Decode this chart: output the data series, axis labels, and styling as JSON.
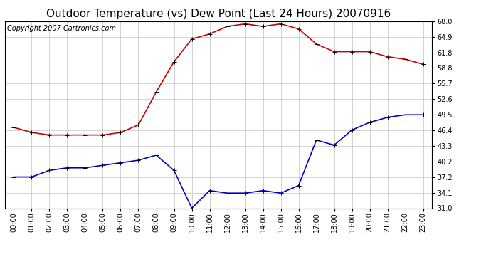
{
  "title": "Outdoor Temperature (vs) Dew Point (Last 24 Hours) 20070916",
  "copyright_text": "Copyright 2007 Cartronics.com",
  "x_labels": [
    "00:00",
    "01:00",
    "02:00",
    "03:00",
    "04:00",
    "05:00",
    "06:00",
    "07:00",
    "08:00",
    "09:00",
    "10:00",
    "11:00",
    "12:00",
    "13:00",
    "14:00",
    "15:00",
    "16:00",
    "17:00",
    "18:00",
    "19:00",
    "20:00",
    "21:00",
    "22:00",
    "23:00"
  ],
  "temp_data": [
    47.0,
    46.0,
    45.5,
    45.5,
    45.5,
    45.5,
    46.0,
    47.5,
    54.0,
    60.0,
    64.5,
    65.5,
    67.0,
    67.5,
    67.0,
    67.5,
    66.5,
    63.5,
    62.0,
    62.0,
    62.0,
    61.0,
    60.5,
    59.5
  ],
  "dew_data": [
    37.2,
    37.2,
    38.5,
    39.0,
    39.0,
    39.5,
    40.0,
    40.5,
    41.5,
    38.5,
    31.0,
    34.5,
    34.0,
    34.0,
    34.5,
    34.0,
    35.5,
    44.5,
    43.5,
    46.5,
    48.0,
    49.0,
    49.5,
    49.5
  ],
  "temp_color": "#cc0000",
  "dew_color": "#0000cc",
  "bg_color": "#ffffff",
  "grid_color": "#cccccc",
  "ylim_min": 31.0,
  "ylim_max": 68.0,
  "yticks": [
    31.0,
    34.1,
    37.2,
    40.2,
    43.3,
    46.4,
    49.5,
    52.6,
    55.7,
    58.8,
    61.8,
    64.9,
    68.0
  ],
  "title_fontsize": 11,
  "copyright_fontsize": 7,
  "tick_fontsize": 7,
  "line_width": 1.2,
  "marker_size": 4
}
